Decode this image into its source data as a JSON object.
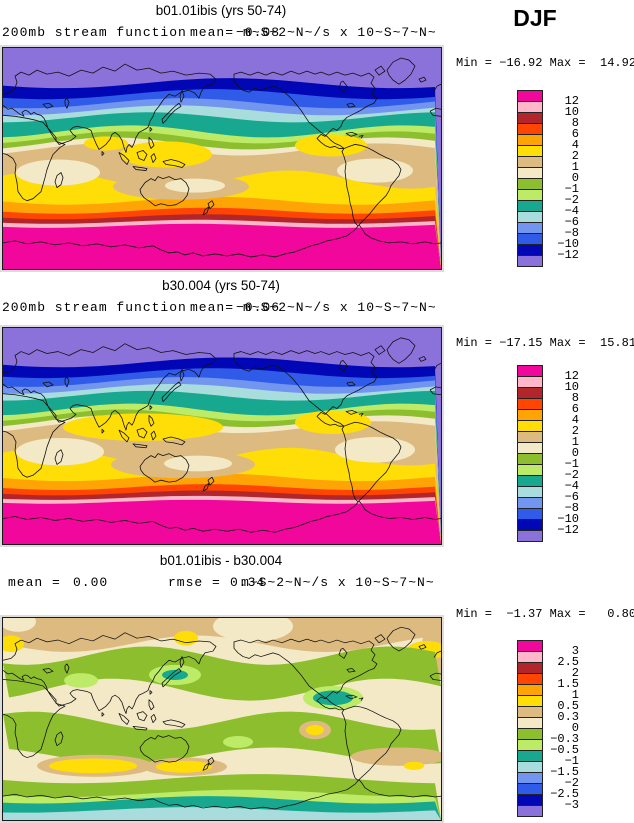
{
  "season": "DJF",
  "palette": [
    "#F2079C",
    "#FFB6C9",
    "#B2252A",
    "#FE4502",
    "#FFA405",
    "#FFDD06",
    "#DDBB80",
    "#F3E9C6",
    "#8CBE2E",
    "#BDEB67",
    "#17A88F",
    "#A9DDDD",
    "#7295F0",
    "#2F5BE8",
    "#0207B5",
    "#8B72DB"
  ],
  "chart_data": [
    {
      "type": "contour-map",
      "title": "b01.01ibis (yrs 50-74)",
      "variable": "200mb stream function",
      "mean_label": "mean=",
      "mean_value": "−0.08",
      "units": "m~S~2~N~/s x 10~S~7~N~",
      "minmax": "Min = −16.92 Max =  14.92",
      "stats": {
        "mean": -0.08,
        "min": -16.92,
        "max": 14.92
      },
      "levels": [
        "12",
        "10",
        "8",
        "6",
        "4",
        "2",
        "1",
        "0",
        "−1",
        "−2",
        "−4",
        "−6",
        "−8",
        "−10",
        "−12"
      ],
      "legend_position": "right",
      "grid": false
    },
    {
      "type": "contour-map",
      "title": "b30.004 (yrs 50-74)",
      "variable": "200mb stream function",
      "mean_label": "mean=",
      "mean_value": "−0.06",
      "units": "m~S~2~N~/s x 10~S~7~N~",
      "minmax": "Min = −17.15 Max =  15.81",
      "stats": {
        "mean": -0.06,
        "min": -17.15,
        "max": 15.81
      },
      "levels": [
        "12",
        "10",
        "8",
        "6",
        "4",
        "2",
        "1",
        "0",
        "−1",
        "−2",
        "−4",
        "−6",
        "−8",
        "−10",
        "−12"
      ],
      "legend_position": "right",
      "grid": false
    },
    {
      "type": "contour-map",
      "title": "b01.01ibis - b30.004",
      "mean_label": "mean =",
      "mean_value": "0.00",
      "rmse_label": "rmse =",
      "rmse_value": "0.34",
      "units": "m~S~2~N~/s x 10~S~7~N~",
      "minmax": "Min =  −1.37 Max =   0.80",
      "stats": {
        "mean": 0.0,
        "rmse": 0.34,
        "min": -1.37,
        "max": 0.8
      },
      "levels": [
        "3",
        "2.5",
        "2",
        "1.5",
        "1",
        "0.5",
        "0.3",
        "0",
        "−0.3",
        "−0.5",
        "−1",
        "−1.5",
        "−2",
        "−2.5",
        "−3"
      ],
      "legend_position": "right",
      "grid": false
    }
  ]
}
